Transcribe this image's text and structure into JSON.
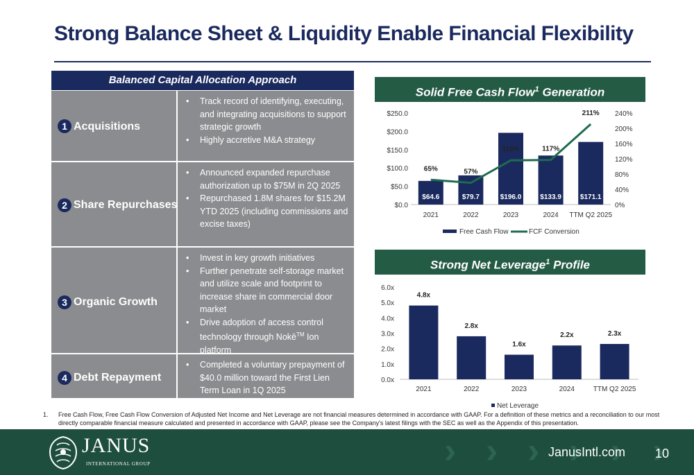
{
  "title": "Strong Balance Sheet & Liquidity Enable Financial Flexibility",
  "table": {
    "header": "Balanced Capital Allocation Approach",
    "rows": [
      {
        "num": "1",
        "label": "Acquisitions",
        "bullets": [
          "Track record of identifying, executing, and integrating acquisitions to support strategic growth",
          "Highly accretive M&A strategy"
        ]
      },
      {
        "num": "2",
        "label": "Share Repurchases",
        "bullets": [
          "Announced expanded repurchase authorization up to $75M  in 2Q 2025",
          "Repurchased 1.8M shares for $15.2M YTD 2025 (including commissions and excise taxes)"
        ]
      },
      {
        "num": "3",
        "label": "Organic Growth",
        "bullets": [
          "Invest in key growth initiatives",
          "Further penetrate self-storage market and utilize scale and footprint to increase share in commercial door market",
          "Drive adoption of access control technology through Nokē",
          "Ion platform"
        ]
      },
      {
        "num": "4",
        "label": "Debt Repayment",
        "bullets": [
          "Completed a voluntary prepayment of $40.0 million toward the First Lien Term Loan in 1Q 2025"
        ]
      }
    ],
    "tm": "TM"
  },
  "fcf_panel": {
    "title_a": "Solid Free Cash Flow",
    "sup": "1",
    "title_b": " Generation"
  },
  "lev_panel": {
    "title_a": "Strong Net Leverage",
    "sup": "1",
    "title_b": " Profile"
  },
  "chart_data": [
    {
      "type": "bar",
      "categories": [
        "2021",
        "2022",
        "2023",
        "2024",
        "TTM Q2 2025"
      ],
      "series": [
        {
          "name": "Free Cash Flow",
          "type": "bar",
          "values": [
            64.6,
            79.7,
            196.0,
            133.9,
            171.1
          ],
          "labels": [
            "$64.6",
            "$79.7",
            "$196.0",
            "$133.9",
            "$171.1"
          ],
          "color": "#1b2a5e"
        },
        {
          "name": "FCF Conversion",
          "type": "line",
          "axis": "right",
          "values": [
            65,
            57,
            116,
            117,
            211
          ],
          "labels": [
            "65%",
            "57%",
            "116%",
            "117%",
            "211%"
          ],
          "color": "#1e6b50"
        }
      ],
      "y_ticks": [
        "$250.0",
        "$200.0",
        "$150.0",
        "$100.0",
        "$50.0",
        "$0.0"
      ],
      "ylim": [
        0,
        250
      ],
      "y2_ticks": [
        "240%",
        "200%",
        "160%",
        "120%",
        "80%",
        "40%",
        "0%"
      ],
      "y2lim": [
        0,
        240
      ],
      "legend": "bottom",
      "grid": false
    },
    {
      "type": "bar",
      "categories": [
        "2021",
        "2022",
        "2023",
        "2024",
        "TTM Q2 2025"
      ],
      "series": [
        {
          "name": "Net Leverage",
          "values": [
            4.8,
            2.8,
            1.6,
            2.2,
            2.3
          ],
          "labels": [
            "4.8x",
            "2.8x",
            "1.6x",
            "2.2x",
            "2.3x"
          ],
          "color": "#1b2a5e"
        }
      ],
      "y_ticks": [
        "6.0x",
        "5.0x",
        "4.0x",
        "3.0x",
        "2.0x",
        "1.0x",
        "0.0x"
      ],
      "ylim": [
        0,
        6
      ],
      "legend": "bottom",
      "grid": false
    }
  ],
  "footnote": {
    "num": "1.",
    "text": "Free Cash Flow, Free Cash Flow Conversion of Adjusted Net Income and Net Leverage are not financial measures determined in accordance with GAAP. For a definition of these metrics and a reconciliation to our most directly comparable financial measure calculated and presented in accordance with GAAP, please see the Company's latest filings with the SEC as well as the Appendix of this presentation."
  },
  "footer": {
    "brand": "JANUS",
    "brand_sub": "INTERNATIONAL GROUP",
    "website": "JanusIntl.com",
    "page": "10"
  },
  "colors": {
    "navy": "#1b2a5e",
    "green": "#245b45",
    "gray": "#8b8c8f",
    "footer": "#1e4e3e"
  }
}
